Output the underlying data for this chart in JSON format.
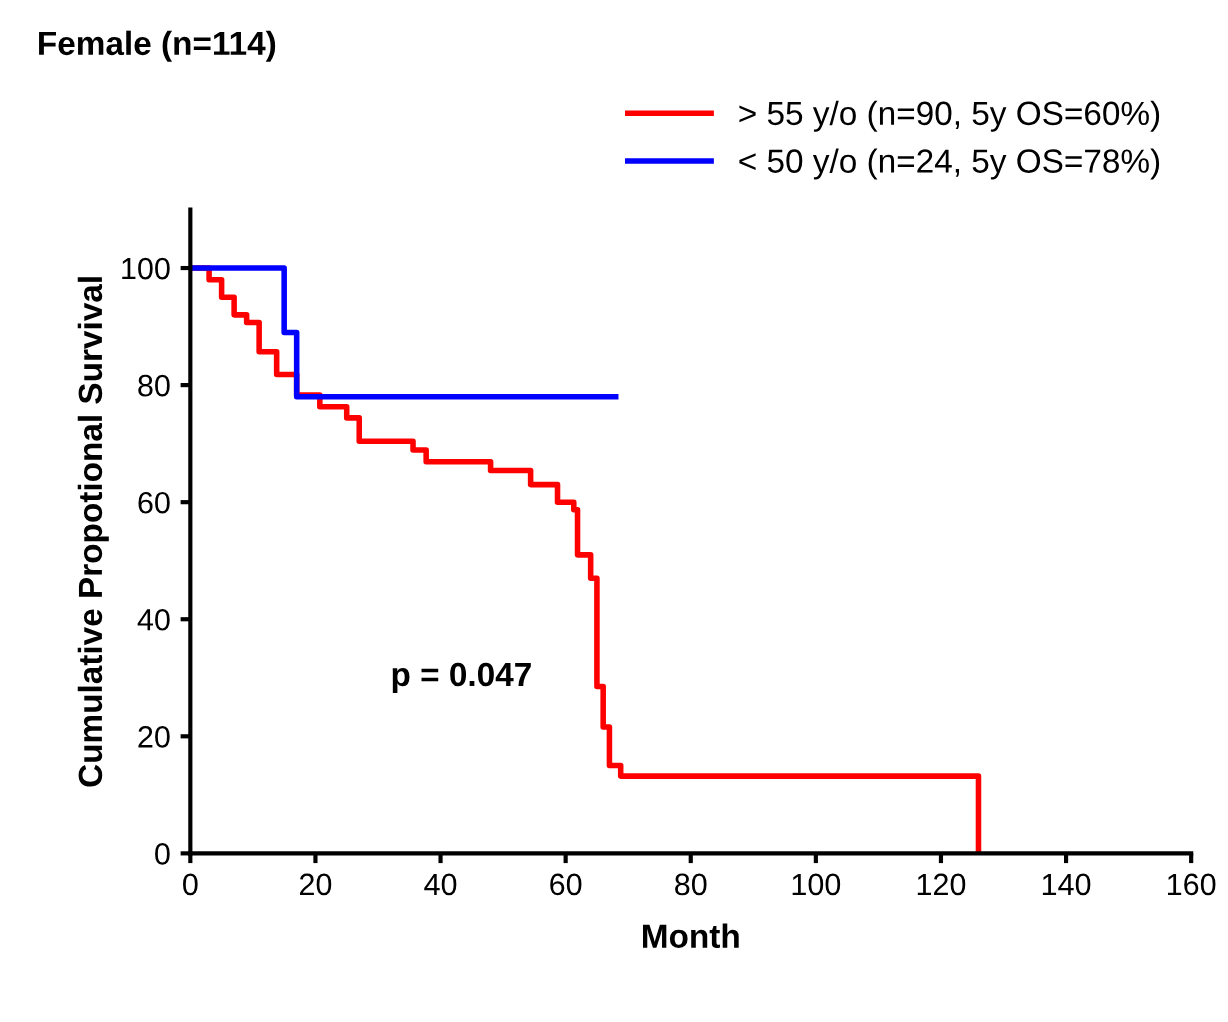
{
  "chart_data": {
    "type": "step",
    "title": "Female (n=114)",
    "xlabel": "Month",
    "ylabel": "Cumulative Propotional Survival",
    "series": [
      {
        "name": "> 55 y/o (n=90, 5y OS=60%)",
        "color": "#ff0000",
        "x": [
          0,
          3,
          5,
          7,
          9,
          11,
          13.8,
          17,
          20.7,
          25,
          27,
          35.6,
          37.7,
          48,
          54.4,
          58.7,
          61.3,
          61.9,
          64,
          65,
          66,
          67,
          68.8,
          126,
          126
        ],
        "values": [
          100,
          98,
          95,
          92,
          90.7,
          85.7,
          81.8,
          78.3,
          76.3,
          74.4,
          70.4,
          68.9,
          66.9,
          65.4,
          63,
          60,
          58.7,
          51,
          47,
          28.5,
          21.6,
          15,
          13.2,
          13.2,
          0
        ]
      },
      {
        "name": "< 50 y/o (n=24, 5y OS=78%)",
        "color": "#0000ff",
        "x": [
          0,
          15,
          17,
          68
        ],
        "values": [
          100,
          89,
          78,
          78
        ]
      }
    ],
    "xlim": [
      0,
      160
    ],
    "xticks": [
      0,
      20,
      40,
      60,
      80,
      100,
      120,
      140,
      160
    ],
    "ylim": [
      0,
      110
    ],
    "yticks": [
      0,
      20,
      40,
      60,
      80,
      100
    ],
    "annotations": [
      "p = 0.047"
    ],
    "grid": false,
    "legend": "top right",
    "line_style": "solid",
    "marker": "none"
  }
}
